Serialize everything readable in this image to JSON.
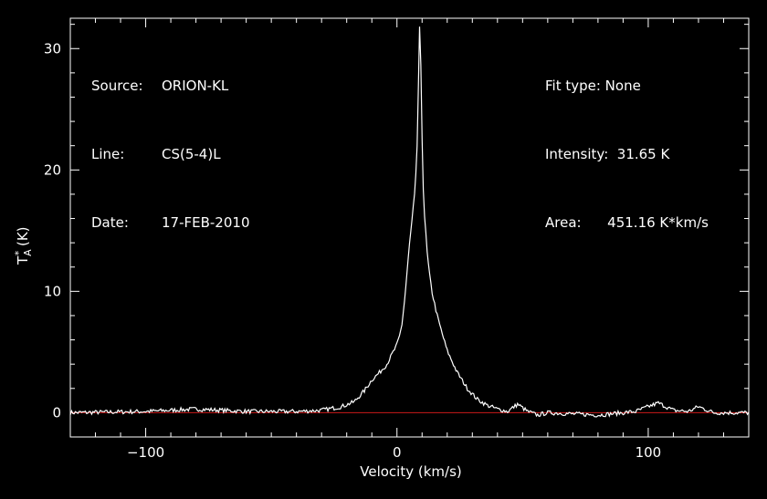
{
  "header": {
    "source_key": "Source:",
    "source_val": "ORION-KL",
    "line_key": "Line:",
    "line_val": "CS(5-4)L",
    "date_key": "Date:",
    "date_val": "17-FEB-2010",
    "fit_text": "Fit type: None",
    "intensity_text": "Intensity:  31.65 K",
    "area_text": "Area:      451.16 K*km/s"
  },
  "colors": {
    "background": "#000000",
    "spectrum": "#ffffff",
    "baseline": "#cc1a1a",
    "axes": "#ffffff"
  },
  "chart_data": {
    "type": "line",
    "xlabel": "Velocity (km/s)",
    "ylabel": "T_A^* (K)",
    "xlim": [
      -130,
      140
    ],
    "ylim": [
      -2,
      32.5
    ],
    "xticks": [
      -100,
      0,
      100
    ],
    "xtick_labels": [
      "−100",
      "0",
      "100"
    ],
    "yticks": [
      0,
      10,
      20,
      30
    ],
    "ytick_labels": [
      "0",
      "10",
      "20",
      "30"
    ],
    "baseline_y": 0,
    "series": [
      {
        "x": [
          -130,
          -100,
          -80,
          -60,
          -40,
          -30,
          -22,
          -17,
          -13,
          -10,
          -7,
          -4,
          -2,
          0,
          1,
          2,
          3,
          4,
          5,
          6,
          7,
          7.5,
          8,
          8.5,
          9,
          9.5,
          10,
          10.5,
          11,
          12,
          13,
          14,
          16,
          18,
          20,
          24,
          28,
          32,
          36,
          40,
          44,
          48,
          52,
          56,
          60,
          80,
          95,
          100,
          104,
          110,
          116,
          120,
          126,
          140
        ],
        "y": [
          0,
          0.1,
          0.3,
          0.1,
          0.1,
          0.2,
          0.5,
          0.9,
          1.8,
          2.7,
          3.3,
          4.0,
          4.8,
          5.6,
          6.3,
          7.3,
          9.2,
          11.5,
          13.9,
          15.9,
          17.9,
          19.5,
          22,
          26.5,
          31.65,
          28.5,
          22.5,
          18.5,
          16.2,
          13.2,
          11.3,
          9.9,
          8.0,
          6.5,
          5.1,
          3.3,
          2.0,
          1.1,
          0.6,
          0.3,
          0.1,
          0.7,
          0.1,
          -0.2,
          0,
          -0.2,
          0.1,
          0.5,
          0.8,
          0.2,
          0.1,
          0.5,
          0.0,
          0.0
        ]
      }
    ]
  }
}
